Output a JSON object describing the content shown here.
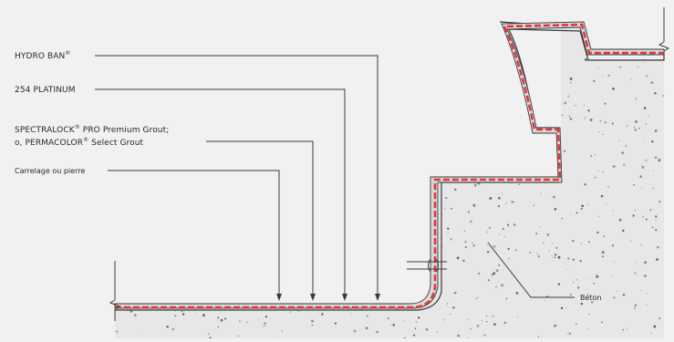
{
  "labels": {
    "hydro_ban": "HYDRO BAN",
    "hydro_ban_reg": "®",
    "platinum": "254 PLATINUM",
    "grout_line1_a": "SPECTRALOCK",
    "grout_line1_reg": "®",
    "grout_line1_b": " PRO Premium Grout;",
    "grout_line2_a": "o, PERMACOLOR",
    "grout_line2_reg": "®",
    "grout_line2_b": " Select Grout",
    "tile": "Carrelage ou pierre",
    "concrete": "Béton"
  },
  "colors": {
    "background": "#f1f1f1",
    "membrane": "#e0383a",
    "line": "#3a3a3a",
    "concrete_fill": "#e7e7e7",
    "tile_fill": "#d8d8d8",
    "aggregate": "#555555"
  }
}
